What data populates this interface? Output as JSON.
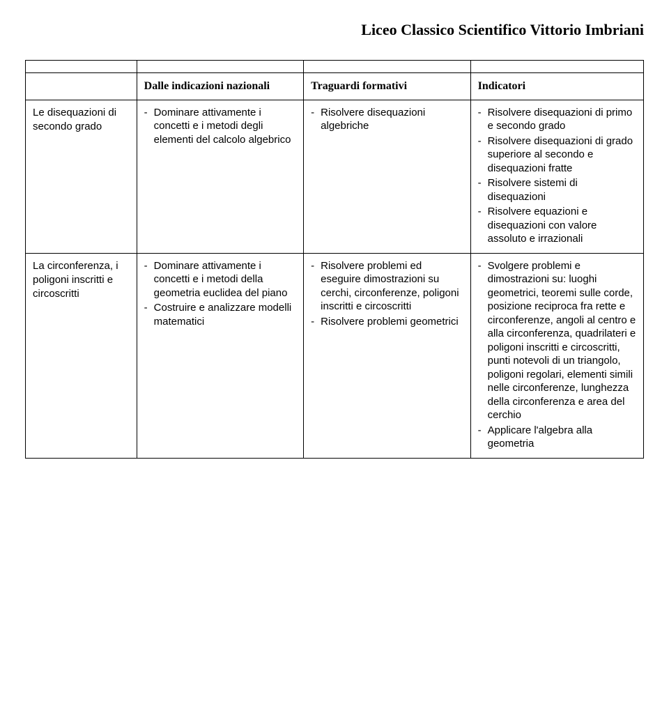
{
  "page_title": "Liceo Classico Scientifico Vittorio Imbriani",
  "table": {
    "headers": {
      "col0": "",
      "col1": "Dalle indicazioni nazionali",
      "col2": "Traguardi formativi",
      "col3": "Indicatori"
    },
    "rows": [
      {
        "label": "Le disequazioni di secondo grado",
        "col1_items": [
          "Dominare attivamente i concetti e i metodi degli elementi del calcolo algebrico"
        ],
        "col2_items": [
          "Risolvere disequazioni algebriche"
        ],
        "col3_items": [
          "Risolvere disequazioni di primo e secondo grado",
          "Risolvere disequazioni di grado superiore al secondo e disequazioni fratte",
          "Risolvere sistemi di disequazioni",
          "Risolvere equazioni e disequazioni con valore assoluto e irrazionali"
        ]
      },
      {
        "label": "La circonferenza, i poligoni inscritti e circoscritti",
        "col1_items": [
          "Dominare attivamente i concetti e i metodi della geometria euclidea del piano",
          "Costruire e analizzare modelli matematici"
        ],
        "col2_items": [
          "Risolvere problemi ed eseguire dimostrazioni su cerchi, circonferenze, poligoni inscritti e circoscritti",
          "Risolvere problemi geometrici"
        ],
        "col3_items": [
          "Svolgere problemi e dimostrazioni su: luoghi geometrici, teoremi sulle corde, posizione reciproca fra rette e circonferenze, angoli al centro e alla circonferenza, quadrilateri e poligoni inscritti e circoscritti, punti notevoli di un triangolo, poligoni regolari, elementi simili nelle circonferenze, lunghezza della circonferenza e area del cerchio",
          "Applicare l'algebra alla geometria"
        ]
      }
    ]
  }
}
